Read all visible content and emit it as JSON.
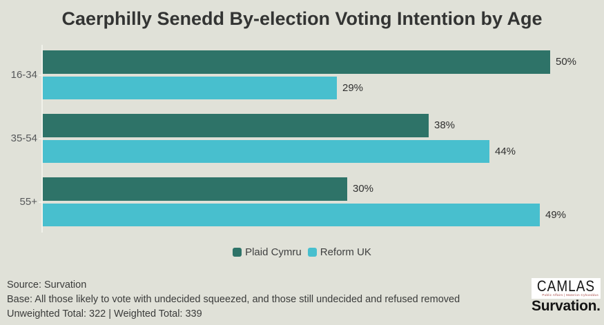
{
  "title": "Caerphilly Senedd By-election Voting Intention by Age",
  "chart_data": {
    "type": "bar",
    "orientation": "horizontal",
    "title": "Caerphilly Senedd By-election Voting Intention by Age",
    "categories": [
      "16-34",
      "35-54",
      "55+"
    ],
    "series": [
      {
        "name": "Plaid Cymru",
        "color": "#2e7368",
        "values": [
          50,
          38,
          30
        ]
      },
      {
        "name": "Reform UK",
        "color": "#48bfce",
        "values": [
          29,
          44,
          49
        ]
      }
    ],
    "value_suffix": "%",
    "xlim": [
      0,
      54
    ],
    "grid": false,
    "legend_position": "bottom"
  },
  "legend": {
    "items": [
      {
        "label": "Plaid Cymru",
        "color": "#2e7368"
      },
      {
        "label": "Reform UK",
        "color": "#48bfce"
      }
    ]
  },
  "footer": {
    "source": "Source: Survation",
    "base": "Base: All those likely to vote with undecided squeezed, and those still undecided and refused removed",
    "totals": "Unweighted Total: 322 | Weighted Total: 339"
  },
  "branding": {
    "camlas": "CAMLAS",
    "camlas_tagline": "Public Affairs | Materion Cyhoeddus",
    "survation": "Survation."
  },
  "colors": {
    "background": "#e0e1d8",
    "plaid_cymru": "#2e7368",
    "reform_uk": "#48bfce",
    "axis_line": "#f1f2ea",
    "title_text": "#333433",
    "axis_label_text": "#56585a",
    "value_label_text": "#2f2f2f",
    "footer_text": "#3a3b3a"
  }
}
